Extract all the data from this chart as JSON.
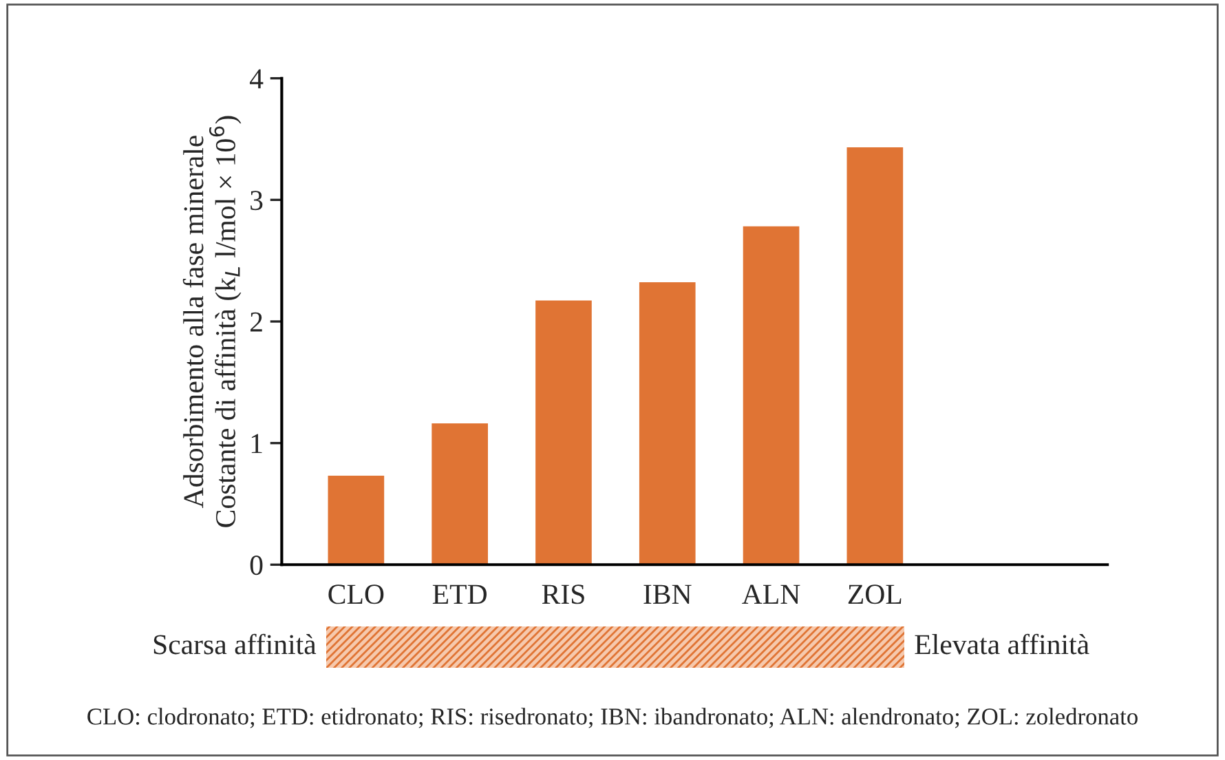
{
  "chart_data": {
    "type": "bar",
    "ylabel": "Adsorbimento alla fase minerale\nCostante di affinità (k$_{L}$ l/mol × 10$^{6}$)",
    "categories": [
      "CLO",
      "ETD",
      "RIS",
      "IBN",
      "ALN",
      "ZOL"
    ],
    "values": [
      0.74,
      1.17,
      2.18,
      2.33,
      2.79,
      3.44
    ],
    "color": "#e07434",
    "ylim": [
      0,
      4
    ],
    "yticks": [
      0,
      1,
      2,
      3,
      4
    ],
    "grid": false,
    "legend": false,
    "annotations": [
      "Scarsa affinità",
      "Elevata affinità",
      "CLO: clodronato; ETD: etidronato; RIS: risedronato; IBN: ibandronato; ALN: alendronato; ZOL: zoledronato"
    ]
  }
}
